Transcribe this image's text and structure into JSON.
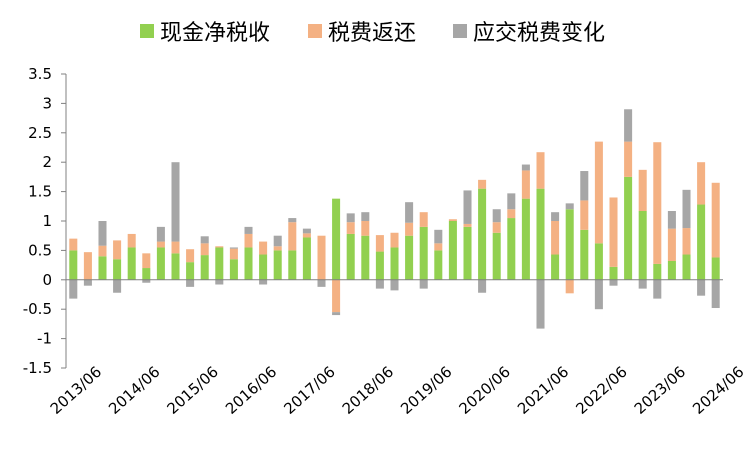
{
  "chart_data": {
    "type": "bar",
    "stacked": true,
    "legend_position": "top",
    "grid": false,
    "ylim": [
      -1.5,
      3.5
    ],
    "y_ticks": [
      "3.5",
      "3",
      "2.5",
      "2",
      "1.5",
      "1",
      "0.5",
      "0",
      "-0.5",
      "-1",
      "-1.5"
    ],
    "x_tick_labels": [
      "2013/06",
      "2014/06",
      "2015/06",
      "2016/06",
      "2017/06",
      "2018/06",
      "2019/06",
      "2020/06",
      "2021/06",
      "2022/06",
      "2023/06",
      "2024/06"
    ],
    "categories": [
      "2013/06",
      "2013/09",
      "2013/12",
      "2014/03",
      "2014/06",
      "2014/09",
      "2014/12",
      "2015/03",
      "2015/06",
      "2015/09",
      "2015/12",
      "2016/03",
      "2016/06",
      "2016/09",
      "2016/12",
      "2017/03",
      "2017/06",
      "2017/09",
      "2017/12",
      "2018/03",
      "2018/06",
      "2018/09",
      "2018/12",
      "2019/03",
      "2019/06",
      "2019/09",
      "2019/12",
      "2020/03",
      "2020/06",
      "2020/09",
      "2020/12",
      "2021/03",
      "2021/06",
      "2021/09",
      "2021/12",
      "2022/03",
      "2022/06",
      "2022/09",
      "2022/12",
      "2023/03",
      "2023/06",
      "2023/09",
      "2023/12",
      "2024/03",
      "2024/06"
    ],
    "series": [
      {
        "name": "现金净税收",
        "color": "#92d050",
        "values": [
          0.5,
          0.0,
          0.4,
          0.35,
          0.55,
          0.2,
          0.55,
          0.45,
          0.3,
          0.42,
          0.55,
          0.35,
          0.55,
          0.43,
          0.5,
          0.5,
          0.72,
          0.0,
          1.38,
          0.78,
          0.75,
          0.48,
          0.55,
          0.75,
          0.9,
          0.5,
          1.0,
          0.9,
          1.55,
          0.8,
          1.05,
          1.38,
          1.55,
          0.43,
          1.2,
          0.85,
          0.62,
          0.22,
          1.75,
          1.17,
          0.27,
          0.32,
          0.43,
          1.28,
          0.38
        ]
      },
      {
        "name": "税费返还",
        "color": "#f4b183",
        "values": [
          0.2,
          0.47,
          0.18,
          0.32,
          0.23,
          0.25,
          0.1,
          0.2,
          0.22,
          0.2,
          0.02,
          0.18,
          0.23,
          0.22,
          0.07,
          0.48,
          0.07,
          0.75,
          -0.55,
          0.2,
          0.25,
          0.28,
          0.25,
          0.22,
          0.25,
          0.12,
          0.03,
          0.05,
          0.15,
          0.18,
          0.15,
          0.48,
          0.62,
          0.57,
          -0.23,
          0.5,
          1.73,
          1.18,
          0.6,
          0.7,
          2.07,
          0.55,
          0.45,
          0.72,
          1.27
        ]
      },
      {
        "name": "应交税费变化",
        "color": "#a6a6a6",
        "values": [
          -0.32,
          -0.1,
          0.42,
          -0.22,
          0.0,
          -0.05,
          0.25,
          1.35,
          -0.12,
          0.12,
          -0.08,
          0.02,
          0.12,
          -0.08,
          0.18,
          0.07,
          0.08,
          -0.12,
          -0.05,
          0.15,
          0.15,
          -0.15,
          -0.18,
          0.35,
          -0.15,
          0.23,
          0.0,
          0.57,
          -0.22,
          0.22,
          0.27,
          0.1,
          -0.83,
          0.15,
          0.1,
          0.5,
          -0.5,
          -0.1,
          0.55,
          -0.15,
          -0.32,
          0.3,
          0.65,
          -0.27,
          -0.48
        ]
      }
    ]
  }
}
